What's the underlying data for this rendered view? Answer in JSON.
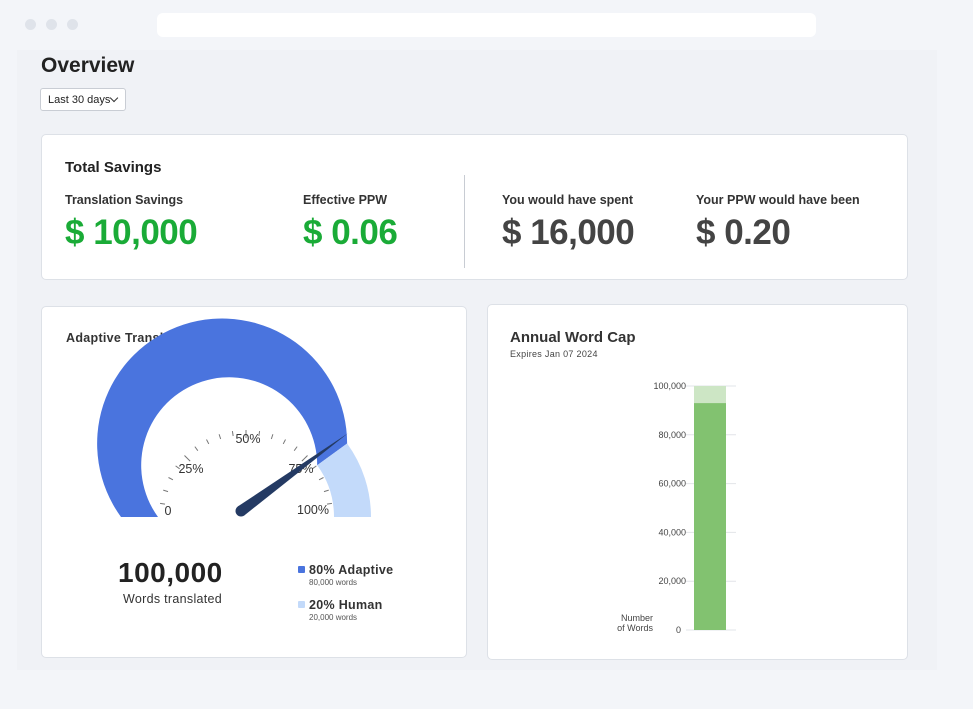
{
  "header": {
    "title": "Overview",
    "range_label": "Last 30 days"
  },
  "savings": {
    "title": "Total Savings",
    "metrics": [
      {
        "label": "Translation Savings",
        "value": "$ 10,000",
        "color": "#1aab37"
      },
      {
        "label": "Effective PPW",
        "value": "$ 0.06",
        "color": "#1aab37"
      },
      {
        "label": "You would have spent",
        "value": "$ 16,000",
        "color": "#444444"
      },
      {
        "label": "Your PPW would have been",
        "value": "$ 0.20",
        "color": "#444444"
      }
    ]
  },
  "adaptive": {
    "title": "Adaptive Translation Value",
    "gauge_ticks": [
      "0",
      "25%",
      "50%",
      "75%",
      "100%"
    ],
    "adaptive_fraction": 0.8,
    "needle_fraction": 0.8,
    "colors": {
      "adaptive": "#4a74de",
      "human": "#c3dafa",
      "needle": "#243a63"
    },
    "total_words": "100,000",
    "total_label": "Words translated",
    "legend": [
      {
        "label": "80% Adaptive",
        "sub": "80,000 words",
        "color": "#4a74de"
      },
      {
        "label": "20% Human",
        "sub": "20,000 words",
        "color": "#c3dafa"
      }
    ]
  },
  "wordcap": {
    "title": "Annual Word Cap",
    "subtitle": "Expires Jan 07 2024",
    "chart_data": {
      "type": "bar",
      "title": "Annual Word Cap",
      "ylabel": "Number of Words",
      "ylim": [
        0,
        100000
      ],
      "yticks": [
        "0",
        "20,000",
        "40,000",
        "60,000",
        "80,000",
        "100,000"
      ],
      "ytick_values": [
        0,
        20000,
        40000,
        60000,
        80000,
        100000
      ],
      "used": 93000,
      "cap": 100000,
      "colors": {
        "used": "#82c270",
        "remaining": "#cde6c5"
      }
    }
  }
}
